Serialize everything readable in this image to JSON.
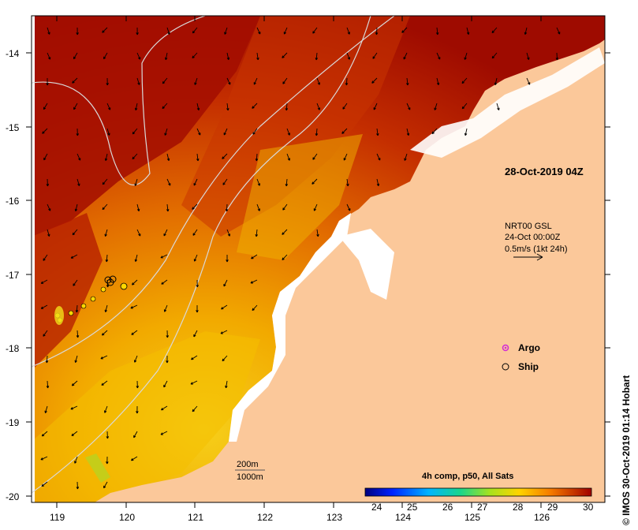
{
  "map": {
    "date_label": "28-Oct-2019 04Z",
    "current_info": {
      "line1": "NRT00 GSL",
      "line2": "24-Oct 00:00Z",
      "line3": "0.5m/s (1kt 24h)"
    },
    "legend": {
      "argo_label": "Argo",
      "ship_label": "Ship",
      "argo_color": "#d12ad6"
    },
    "contours": {
      "label_200": "200m",
      "label_1000": "1000m"
    },
    "colorbar": {
      "title": "4h comp, p50, All Sats",
      "ticks": [
        "24",
        "25",
        "26",
        "27",
        "28",
        "29",
        "30"
      ]
    },
    "credit": "© IMOS 30-Oct-2019 01:14 Hobart",
    "x_ticks": [
      "119",
      "120",
      "121",
      "122",
      "123",
      "124",
      "125",
      "126"
    ],
    "y_ticks": [
      "-14",
      "-15",
      "-16",
      "-17",
      "-18",
      "-19",
      "-20"
    ],
    "colors": {
      "land": "#fbc89a",
      "warm_dark": "#a00d00",
      "warm_mid": "#e05a00",
      "warm_light": "#f3b200"
    }
  }
}
